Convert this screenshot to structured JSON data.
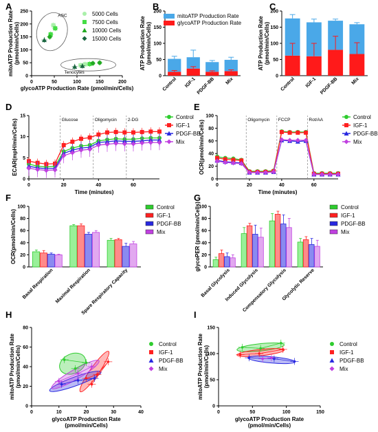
{
  "colors": {
    "Control": "#2ecc2e",
    "IGF-1": "#ff2020",
    "PDGF-BB": "#2828e0",
    "Mix": "#c040e0",
    "mito": "#4aa8e8",
    "glyco": "#ff1a1a",
    "cells_5000": "#aaf0aa",
    "cells_7500": "#44dd44",
    "cells_10000": "#22aa22",
    "cells_15000": "#1a6640"
  },
  "chart_data": [
    {
      "id": "A",
      "type": "scatter",
      "xlabel": "glycoATP Production Rate (pmol/min/Cells)",
      "ylabel": "mitoATP Production Rate (pmol/min/Cells)",
      "xlim": [
        0,
        200
      ],
      "ylim": [
        0,
        250
      ],
      "xticks": [
        0,
        50,
        100,
        150,
        200
      ],
      "yticks": [
        0,
        50,
        100,
        150,
        200,
        250
      ],
      "legend": "top-right",
      "annotations": [
        "ASC",
        "Tenocytes"
      ],
      "series": [
        {
          "name": "5000 Cells",
          "color_key": "cells_5000",
          "points": [
            [
              48,
              195
            ],
            [
              108,
              40
            ],
            [
              118,
              44
            ]
          ]
        },
        {
          "name": "7500 Cells",
          "color_key": "cells_7500",
          "points": [
            [
              52,
              183
            ],
            [
              42,
              160
            ],
            [
              128,
              45
            ]
          ]
        },
        {
          "name": "10000 Cells",
          "color_key": "cells_10000",
          "points": [
            [
              40,
              150
            ],
            [
              135,
              48
            ],
            [
              150,
              50
            ]
          ]
        },
        {
          "name": "15000 Cells",
          "color_key": "cells_15000",
          "points": [
            [
              28,
              138
            ],
            [
              95,
              35
            ],
            [
              112,
              38
            ]
          ]
        }
      ]
    },
    {
      "id": "B",
      "type": "bar",
      "ylabel": "ATP Production Rate (pmol/min/Cells)",
      "ylim": [
        0,
        200
      ],
      "yticks": [
        0,
        50,
        100,
        150,
        200
      ],
      "categories": [
        "Control",
        "IGF-1",
        "PDGF-BB",
        "Mix"
      ],
      "legend": "top",
      "series": [
        {
          "name": "mitoATP Production Rate",
          "color_key": "mito",
          "values": [
            40,
            35,
            30,
            35
          ],
          "errors": [
            8,
            22,
            5,
            8
          ]
        },
        {
          "name": "glycoATP Production Rate",
          "color_key": "glyco",
          "values": [
            12,
            22,
            12,
            14
          ],
          "errors": [
            4,
            6,
            3,
            4
          ]
        }
      ]
    },
    {
      "id": "C",
      "type": "bar",
      "ylabel": "ATP Production Rate (pmol/min/Cells)",
      "ylim": [
        0,
        200
      ],
      "yticks": [
        0,
        50,
        100,
        150,
        200
      ],
      "categories": [
        "Control",
        "IGF-1",
        "PDGF-BB",
        "Mix"
      ],
      "series": [
        {
          "name": "mito",
          "color_key": "mito",
          "values": [
            115,
            105,
            90,
            92
          ],
          "errors": [
            12,
            10,
            5,
            5
          ]
        },
        {
          "name": "glyco",
          "color_key": "glyco",
          "values": [
            62,
            60,
            80,
            67
          ],
          "errors": [
            38,
            40,
            42,
            35
          ]
        }
      ]
    },
    {
      "id": "D",
      "type": "line",
      "xlabel": "Time (minutes)",
      "ylabel": "ECAR(mpH/min/Cells)",
      "xlim": [
        0,
        75
      ],
      "ylim": [
        0,
        15
      ],
      "xticks": [
        0,
        20,
        40,
        60
      ],
      "yticks": [
        0,
        5,
        10,
        15
      ],
      "legend": "right",
      "annotations": [
        {
          "x": 18,
          "label": "Glucose"
        },
        {
          "x": 37,
          "label": "Oligomycin"
        },
        {
          "x": 56,
          "label": "2-DG"
        }
      ],
      "x": [
        0,
        5,
        10,
        15,
        20,
        25,
        30,
        35,
        40,
        45,
        50,
        55,
        60,
        65,
        70,
        75
      ],
      "series": [
        {
          "name": "Control",
          "color_key": "Control",
          "values": [
            3.5,
            3.0,
            2.8,
            3.0,
            6.5,
            7.3,
            7.8,
            8.0,
            9.0,
            9.3,
            9.5,
            9.4,
            9.4,
            9.6,
            9.7,
            9.7
          ],
          "err": 1.2
        },
        {
          "name": "IGF-1",
          "color_key": "IGF-1",
          "values": [
            4.2,
            3.8,
            3.5,
            3.6,
            8.0,
            8.8,
            9.5,
            9.8,
            10.5,
            11.0,
            11.1,
            11.0,
            11.0,
            11.1,
            11.2,
            11.2
          ],
          "err": 1.0
        },
        {
          "name": "PDGF-BB",
          "color_key": "PDGF-BB",
          "values": [
            3.0,
            2.6,
            2.4,
            2.5,
            6.0,
            6.8,
            7.3,
            7.5,
            8.6,
            8.8,
            9.0,
            8.9,
            8.9,
            9.0,
            9.2,
            9.2
          ],
          "err": 1.5
        },
        {
          "name": "Mix",
          "color_key": "Mix",
          "values": [
            2.5,
            2.2,
            2.0,
            2.1,
            5.5,
            6.2,
            6.8,
            7.0,
            8.0,
            8.2,
            8.4,
            8.3,
            8.3,
            8.5,
            8.6,
            8.6
          ],
          "err": 1.8
        }
      ]
    },
    {
      "id": "E",
      "type": "line",
      "xlabel": "Time (minutes)",
      "ylabel": "OCR(pmol/min/Cells)",
      "xlim": [
        0,
        75
      ],
      "ylim": [
        0,
        100
      ],
      "xticks": [
        0,
        20,
        40,
        60
      ],
      "yticks": [
        0,
        20,
        40,
        60,
        80,
        100
      ],
      "legend": "right",
      "annotations": [
        {
          "x": 18,
          "label": "Oligomycin"
        },
        {
          "x": 37,
          "label": "FCCP"
        },
        {
          "x": 56,
          "label": "Rot/AA"
        }
      ],
      "x": [
        0,
        5,
        10,
        15,
        20,
        25,
        30,
        35,
        40,
        45,
        50,
        55,
        60,
        65,
        70,
        75
      ],
      "series": [
        {
          "name": "Control",
          "color_key": "Control",
          "values": [
            35,
            33,
            32,
            30,
            12,
            12,
            12,
            13,
            75,
            74,
            74,
            74,
            9,
            9,
            9,
            9
          ],
          "err": 3
        },
        {
          "name": "IGF-1",
          "color_key": "IGF-1",
          "values": [
            33,
            31,
            30,
            29,
            11,
            11,
            11,
            12,
            74,
            73,
            73,
            73,
            8,
            8,
            8,
            8
          ],
          "err": 3
        },
        {
          "name": "PDGF-BB",
          "color_key": "PDGF-BB",
          "values": [
            29,
            27,
            26,
            25,
            10,
            10,
            10,
            11,
            61,
            60,
            59,
            60,
            7,
            7,
            7,
            7
          ],
          "err": 3
        },
        {
          "name": "Mix",
          "color_key": "Mix",
          "values": [
            28,
            26,
            25,
            24,
            10,
            10,
            10,
            11,
            62,
            61,
            61,
            61,
            7,
            7,
            7,
            7
          ],
          "err": 3
        }
      ]
    },
    {
      "id": "F",
      "type": "bar",
      "ylabel": "OCR(pmol/min/Cells)",
      "ylim": [
        0,
        100
      ],
      "yticks": [
        0,
        20,
        40,
        60,
        80,
        100
      ],
      "categories": [
        "Basal Respiration",
        "Maximal Respiration",
        "Spare Respiratory Capacity"
      ],
      "legend": "right",
      "series": [
        {
          "name": "Control",
          "color_key": "Control",
          "values": [
            25,
            68,
            44
          ],
          "errors": [
            3,
            2,
            3
          ]
        },
        {
          "name": "IGF-1",
          "color_key": "IGF-1",
          "values": [
            23,
            68,
            45
          ],
          "errors": [
            4,
            3,
            2
          ]
        },
        {
          "name": "PDGF-BB",
          "color_key": "PDGF-BB",
          "values": [
            21,
            54,
            34
          ],
          "errors": [
            2,
            3,
            5
          ]
        },
        {
          "name": "Mix",
          "color_key": "Mix",
          "values": [
            20,
            57,
            38
          ],
          "errors": [
            1,
            3,
            4
          ]
        }
      ]
    },
    {
      "id": "G",
      "type": "bar",
      "ylabel": "glycoPER (pmol/min/Cells)",
      "ylim": [
        0,
        100
      ],
      "yticks": [
        0,
        20,
        40,
        60,
        80,
        100
      ],
      "categories": [
        "Basal Glycolysis",
        "Induced Glycolysis",
        "Compensatory Glycolysis",
        "Glycolytic Reserve"
      ],
      "legend": "right",
      "series": [
        {
          "name": "Control",
          "color_key": "Control",
          "values": [
            12,
            55,
            76,
            41
          ],
          "errors": [
            4,
            10,
            12,
            6
          ]
        },
        {
          "name": "IGF-1",
          "color_key": "IGF-1",
          "values": [
            22,
            68,
            87,
            45
          ],
          "errors": [
            6,
            4,
            5,
            5
          ]
        },
        {
          "name": "PDGF-BB",
          "color_key": "PDGF-BB",
          "values": [
            17,
            54,
            71,
            37
          ],
          "errors": [
            6,
            15,
            15,
            10
          ]
        },
        {
          "name": "Mix",
          "color_key": "Mix",
          "values": [
            15,
            49,
            65,
            34
          ],
          "errors": [
            5,
            15,
            15,
            10
          ]
        }
      ]
    },
    {
      "id": "H",
      "type": "scatter",
      "xlabel": "glycoATP Production Rate (pmol/min/Cells)",
      "ylabel": "mitoATP Production Rate (pmol/min/Cells)",
      "xlim": [
        0,
        40
      ],
      "ylim": [
        0,
        80
      ],
      "xticks": [
        0,
        10,
        20,
        30,
        40
      ],
      "yticks": [
        0,
        20,
        40,
        60,
        80
      ],
      "legend": "right",
      "series": [
        {
          "name": "Control",
          "color_key": "Control",
          "points": [
            [
              12,
              47
            ],
            [
              20,
              44
            ],
            [
              16,
              38
            ]
          ],
          "ellipse": {
            "cx": 15,
            "cy": 43,
            "rx": 5,
            "ry": 10,
            "rot": 25
          }
        },
        {
          "name": "IGF-1",
          "color_key": "IGF-1",
          "points": [
            [
              20,
              28
            ],
            [
              24,
              32
            ],
            [
              28,
              45
            ],
            [
              22,
              22
            ]
          ],
          "ellipse": {
            "cx": 23,
            "cy": 35,
            "rx": 9,
            "ry": 4.5,
            "rot": 55
          }
        },
        {
          "name": "PDGF-BB",
          "color_key": "PDGF-BB",
          "points": [
            [
              11,
              22
            ],
            [
              17,
              26
            ],
            [
              23,
              28
            ]
          ],
          "ellipse": {
            "cx": 16,
            "cy": 25,
            "rx": 10,
            "ry": 4.5,
            "rot": 20
          }
        },
        {
          "name": "Mix",
          "color_key": "Mix",
          "points": [
            [
              10,
              25
            ],
            [
              17,
              33
            ],
            [
              22,
              40
            ]
          ],
          "ellipse": {
            "cx": 16,
            "cy": 32,
            "rx": 10,
            "ry": 5,
            "rot": 30
          }
        }
      ]
    },
    {
      "id": "I",
      "type": "scatter",
      "xlabel": "glycoATP Production Rate (pmol/min/Cells)",
      "ylabel": "mitoATP Production Rate (pmol/min/Cells)",
      "xlim": [
        0,
        150
      ],
      "ylim": [
        0,
        150
      ],
      "xticks": [
        0,
        50,
        100,
        150
      ],
      "yticks": [
        0,
        50,
        100,
        150
      ],
      "legend": "right",
      "series": [
        {
          "name": "Control",
          "color_key": "Control",
          "points": [
            [
              35,
              112
            ],
            [
              62,
              110
            ],
            [
              92,
              120
            ]
          ],
          "ellipse": {
            "cx": 62,
            "cy": 112,
            "rx": 35,
            "ry": 7,
            "rot": 6
          }
        },
        {
          "name": "IGF-1",
          "color_key": "IGF-1",
          "points": [
            [
              32,
              98
            ],
            [
              60,
              100
            ],
            [
              95,
              108
            ]
          ],
          "ellipse": {
            "cx": 62,
            "cy": 102,
            "rx": 35,
            "ry": 6,
            "rot": 6
          }
        },
        {
          "name": "PDGF-BB",
          "color_key": "PDGF-BB",
          "points": [
            [
              45,
              92
            ],
            [
              82,
              90
            ],
            [
              112,
              85
            ]
          ],
          "ellipse": {
            "cx": 78,
            "cy": 88,
            "rx": 35,
            "ry": 6,
            "rot": -5
          }
        },
        {
          "name": "Mix",
          "color_key": "Mix",
          "points": [
            [
              65,
              90
            ],
            [
              78,
              92
            ]
          ],
          "ellipse": null
        }
      ]
    }
  ]
}
